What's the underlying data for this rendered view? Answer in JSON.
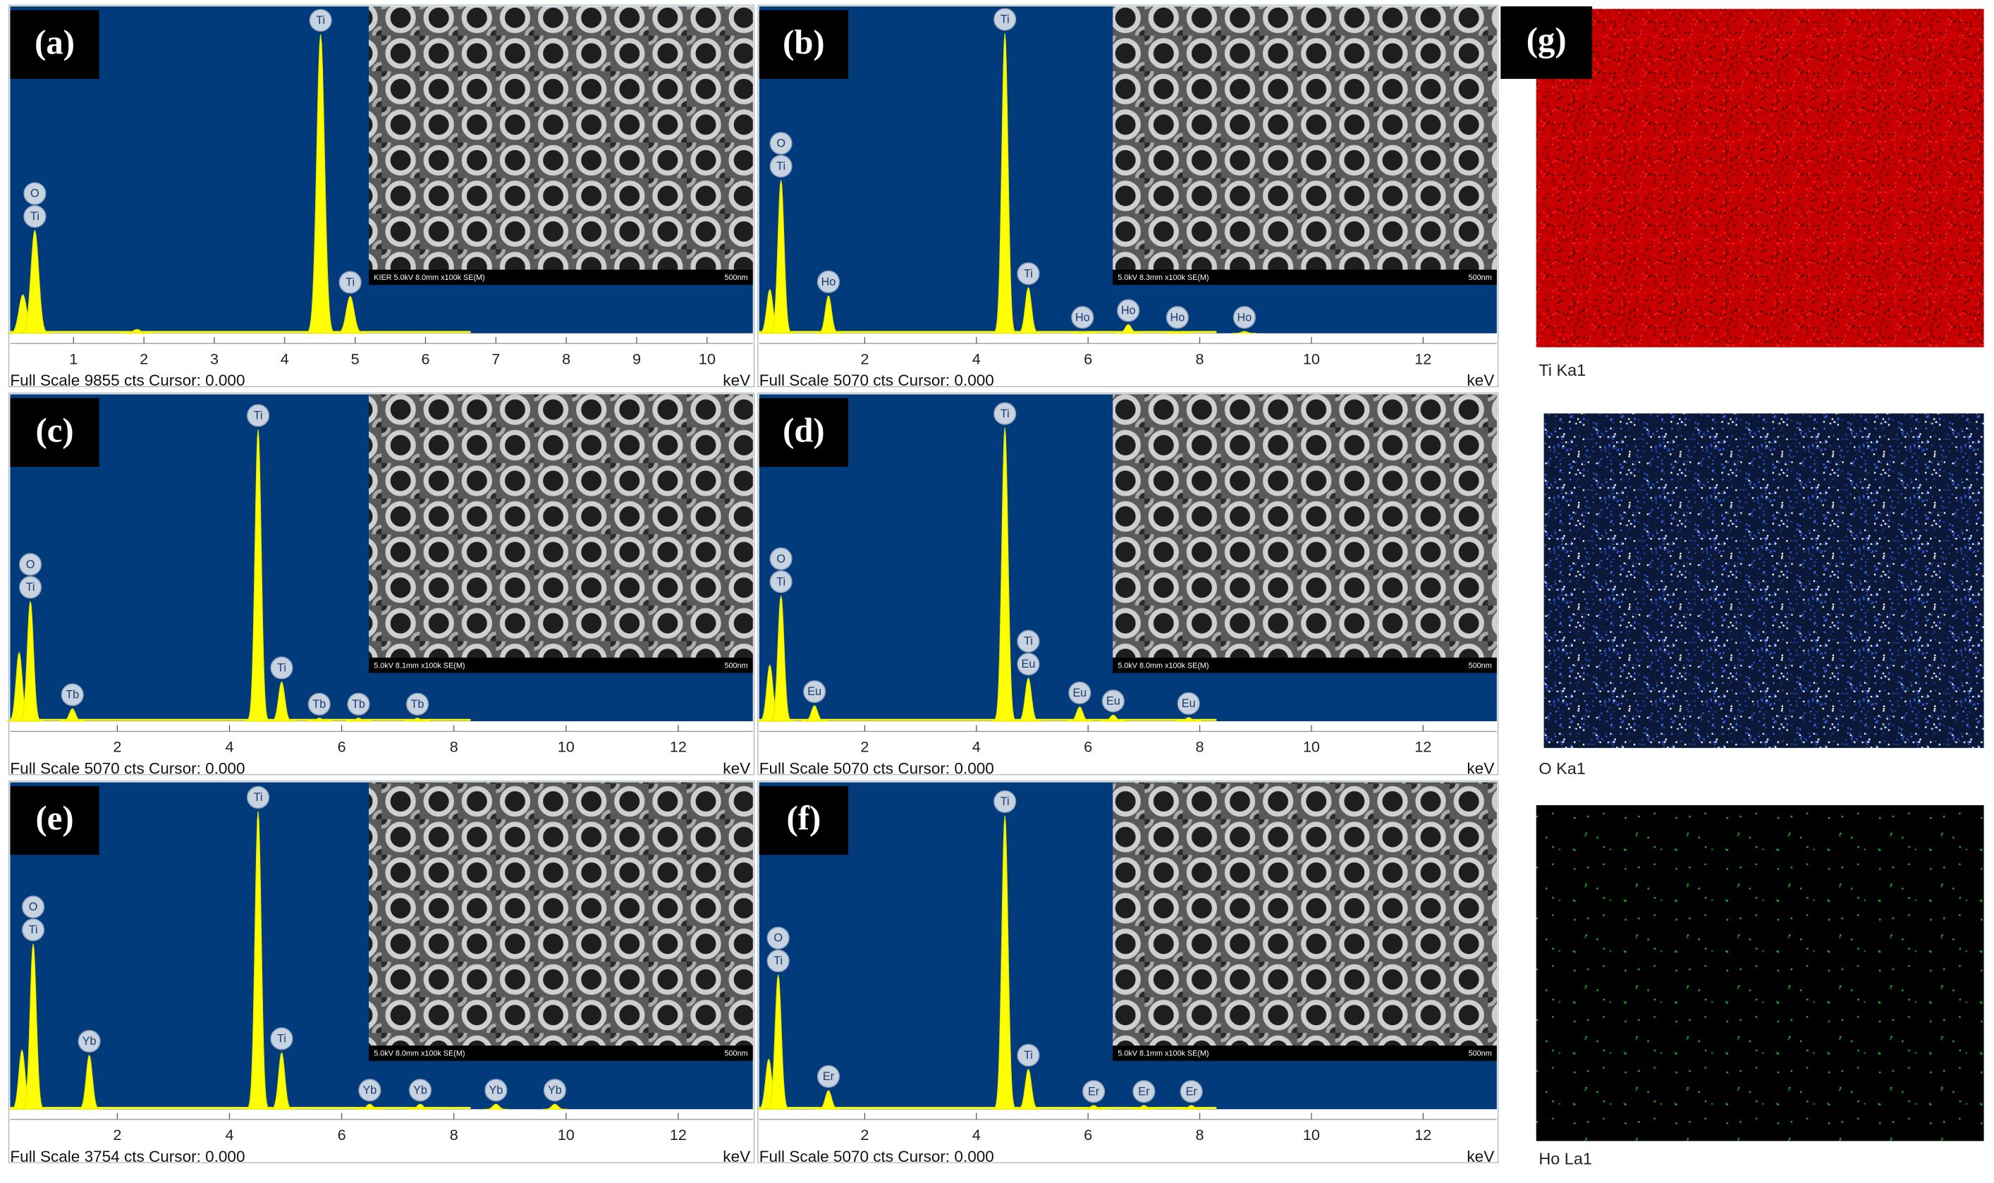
{
  "chart_data": [
    {
      "type": "spectrum",
      "panel_label": "(a)",
      "xlim": [
        0.1,
        10.65
      ],
      "xticks": [
        1,
        2,
        3,
        4,
        5,
        6,
        7,
        8,
        9,
        10
      ],
      "ylim": [
        0,
        9855
      ],
      "peak_x": [
        0.28,
        0.45,
        1.9,
        4.51,
        4.93
      ],
      "values": [
        1200,
        3200,
        120,
        9300,
        1150
      ],
      "peak_labels": [
        null,
        [
          "O",
          "Ti"
        ],
        null,
        [
          "Ti"
        ],
        [
          "Ti"
        ]
      ],
      "footer": "Full Scale 9855 cts Cursor: 0.000",
      "x_unit": "keV",
      "inset_info": "KIER 5.0kV 8.0mm x100k SE(M)",
      "inset_scale": "500nm"
    },
    {
      "type": "spectrum",
      "panel_label": "(b)",
      "xlim": [
        0.11,
        13.32
      ],
      "xticks": [
        2,
        4,
        6,
        8,
        10,
        12
      ],
      "ylim": [
        0,
        5070
      ],
      "peak_x": [
        0.3,
        0.5,
        1.35,
        4.51,
        4.93,
        5.9,
        6.72,
        7.6,
        8.8
      ],
      "values": [
        700,
        2450,
        600,
        4800,
        730,
        30,
        140,
        30,
        30
      ],
      "peak_labels": [
        null,
        [
          "O",
          "Ti"
        ],
        [
          "Ho"
        ],
        [
          "Ti"
        ],
        [
          "Ti"
        ],
        [
          "Ho"
        ],
        [
          "Ho"
        ],
        [
          "Ho"
        ],
        [
          "Ho"
        ]
      ],
      "footer": "Full Scale 5070 cts Cursor: 0.000",
      "x_unit": "keV",
      "inset_info": "5.0kV 8.3mm x100k SE(M)",
      "inset_scale": "500nm"
    },
    {
      "type": "spectrum",
      "panel_label": "(c)",
      "xlim": [
        0.09,
        13.33
      ],
      "xticks": [
        2,
        4,
        6,
        8,
        10,
        12
      ],
      "ylim": [
        0,
        5070
      ],
      "peak_x": [
        0.25,
        0.45,
        1.2,
        4.51,
        4.93,
        5.6,
        6.3,
        7.35
      ],
      "values": [
        1100,
        1920,
        200,
        4670,
        630,
        50,
        50,
        50
      ],
      "peak_labels": [
        null,
        [
          "O",
          "Ti"
        ],
        [
          "Tb"
        ],
        [
          "Ti"
        ],
        [
          "Ti"
        ],
        [
          "Tb"
        ],
        [
          "Tb"
        ],
        [
          "Tb"
        ]
      ],
      "footer": "Full Scale 5070 cts Cursor: 0.000",
      "x_unit": "keV",
      "inset_info": "5.0kV 8.1mm x100k SE(M)",
      "inset_scale": "500nm"
    },
    {
      "type": "spectrum",
      "panel_label": "(d)",
      "xlim": [
        0.11,
        13.32
      ],
      "xticks": [
        2,
        4,
        6,
        8,
        10,
        12
      ],
      "ylim": [
        0,
        5070
      ],
      "peak_x": [
        0.3,
        0.5,
        1.1,
        4.51,
        4.93,
        5.85,
        6.45,
        7.8
      ],
      "values": [
        900,
        2010,
        250,
        4700,
        690,
        230,
        100,
        60
      ],
      "peak_labels": [
        null,
        [
          "O",
          "Ti"
        ],
        [
          "Eu"
        ],
        [
          "Ti"
        ],
        [
          "Ti",
          "Eu"
        ],
        [
          "Eu"
        ],
        [
          "Eu"
        ],
        [
          "Eu"
        ]
      ],
      "footer": "Full Scale 5070 cts Cursor: 0.000",
      "x_unit": "keV",
      "inset_info": "5.0kV 8.0mm x100k SE(M)",
      "inset_scale": "500nm"
    },
    {
      "type": "spectrum",
      "panel_label": "(e)",
      "xlim": [
        0.09,
        13.33
      ],
      "xticks": [
        2,
        4,
        6,
        8,
        10,
        12
      ],
      "ylim": [
        0,
        3754
      ],
      "peak_x": [
        0.3,
        0.5,
        1.5,
        4.51,
        4.93,
        6.5,
        7.4,
        8.75,
        9.8
      ],
      "values": [
        700,
        1960,
        640,
        3530,
        670,
        60,
        60,
        60,
        60
      ],
      "peak_labels": [
        null,
        [
          "O",
          "Ti"
        ],
        [
          "Yb"
        ],
        [
          "Ti"
        ],
        [
          "Ti"
        ],
        [
          "Yb"
        ],
        [
          "Yb"
        ],
        [
          "Yb"
        ],
        [
          "Yb"
        ]
      ],
      "footer": "Full Scale 3754 cts Cursor: 0.000",
      "x_unit": "keV",
      "inset_info": "5.0kV 8.0mm x100k SE(M)",
      "inset_scale": "500nm"
    },
    {
      "type": "spectrum",
      "panel_label": "(f)",
      "xlim": [
        0.11,
        13.32
      ],
      "xticks": [
        2,
        4,
        6,
        8,
        10,
        12
      ],
      "ylim": [
        0,
        5070
      ],
      "peak_x": [
        0.28,
        0.45,
        1.35,
        4.51,
        4.93,
        6.1,
        7.0,
        7.85
      ],
      "values": [
        800,
        2150,
        300,
        4700,
        640,
        60,
        60,
        60
      ],
      "peak_labels": [
        null,
        [
          "O",
          "Ti"
        ],
        [
          "Er"
        ],
        [
          "Ti"
        ],
        [
          "Ti"
        ],
        [
          "Er"
        ],
        [
          "Er"
        ],
        [
          "Er"
        ]
      ],
      "footer": "Full Scale 5070 cts Cursor: 0.000",
      "x_unit": "keV",
      "inset_info": "5.0kV 8.1mm x100k SE(M)",
      "inset_scale": "500nm"
    }
  ],
  "maps": {
    "panel_label": "(g)",
    "captions": [
      "Ti Ka1",
      "O Ka1",
      "Ho La1"
    ]
  }
}
